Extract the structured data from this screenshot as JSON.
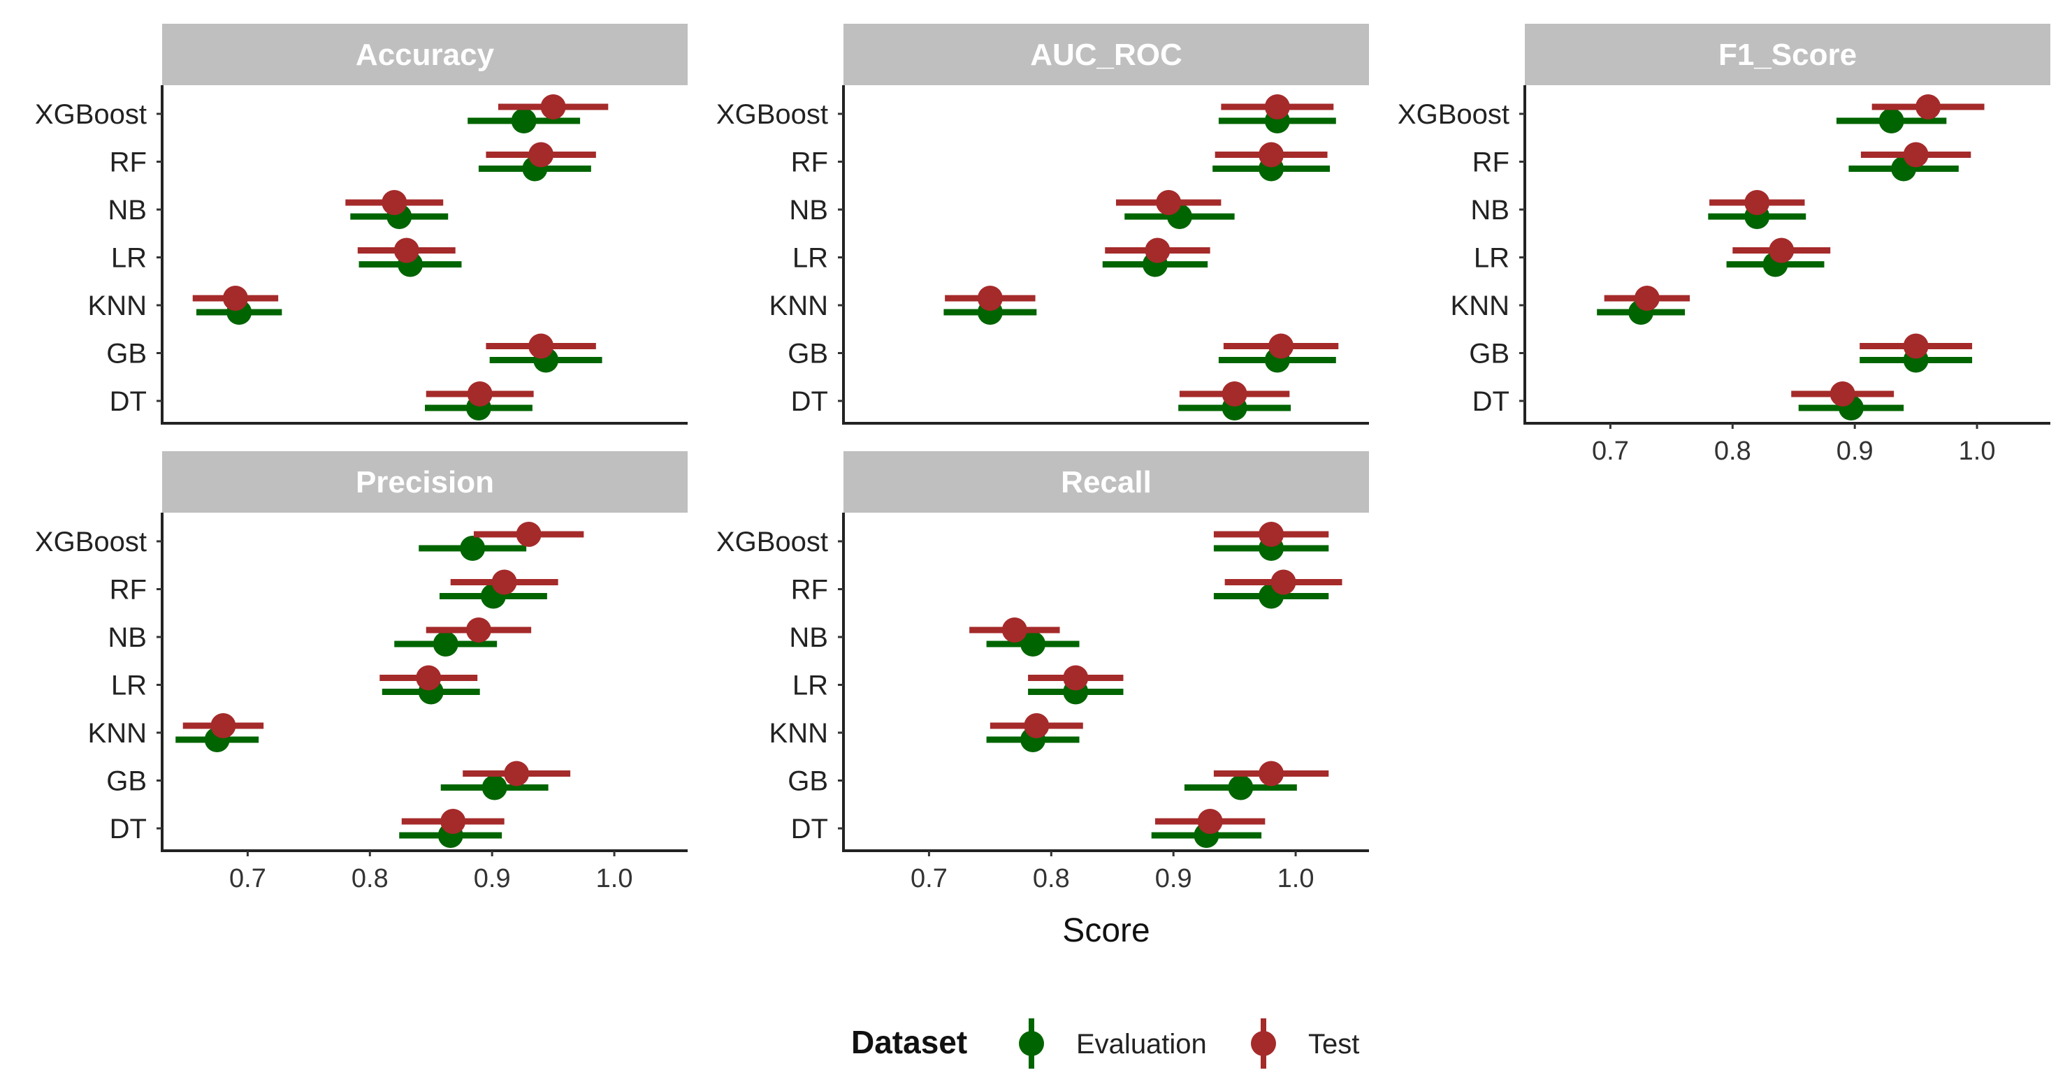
{
  "chart_data": {
    "type": "dot-errorbar-facets",
    "x_label": "Score",
    "x_ticks": [
      0.7,
      0.8,
      0.9,
      1.0
    ],
    "x_tick_labels": [
      "0.7",
      "0.8",
      "0.9",
      "1.0"
    ],
    "xlim": [
      0.63,
      1.06
    ],
    "categories": [
      "XGBoost",
      "RF",
      "NB",
      "LR",
      "KNN",
      "GB",
      "DT"
    ],
    "legend": {
      "title": "Dataset",
      "items": [
        {
          "name": "Evaluation",
          "color": "#006400"
        },
        {
          "name": "Test",
          "color": "#a52a2a"
        }
      ]
    },
    "panels": [
      {
        "title": "Accuracy",
        "series": [
          {
            "name": "Evaluation",
            "values": [
              {
                "model": "XGBoost",
                "mean": 0.926,
                "low": 0.88,
                "high": 0.972
              },
              {
                "model": "RF",
                "mean": 0.935,
                "low": 0.889,
                "high": 0.981
              },
              {
                "model": "NB",
                "mean": 0.824,
                "low": 0.784,
                "high": 0.864
              },
              {
                "model": "LR",
                "mean": 0.833,
                "low": 0.791,
                "high": 0.875
              },
              {
                "model": "KNN",
                "mean": 0.693,
                "low": 0.658,
                "high": 0.728
              },
              {
                "model": "GB",
                "mean": 0.944,
                "low": 0.898,
                "high": 0.99
              },
              {
                "model": "DT",
                "mean": 0.889,
                "low": 0.845,
                "high": 0.933
              }
            ]
          },
          {
            "name": "Test",
            "values": [
              {
                "model": "XGBoost",
                "mean": 0.95,
                "low": 0.905,
                "high": 0.995
              },
              {
                "model": "RF",
                "mean": 0.94,
                "low": 0.895,
                "high": 0.985
              },
              {
                "model": "NB",
                "mean": 0.82,
                "low": 0.78,
                "high": 0.86
              },
              {
                "model": "LR",
                "mean": 0.83,
                "low": 0.79,
                "high": 0.87
              },
              {
                "model": "KNN",
                "mean": 0.69,
                "low": 0.655,
                "high": 0.725
              },
              {
                "model": "GB",
                "mean": 0.94,
                "low": 0.895,
                "high": 0.985
              },
              {
                "model": "DT",
                "mean": 0.89,
                "low": 0.846,
                "high": 0.934
              }
            ]
          }
        ]
      },
      {
        "title": "AUC_ROC",
        "series": [
          {
            "name": "Evaluation",
            "values": [
              {
                "model": "XGBoost",
                "mean": 0.985,
                "low": 0.937,
                "high": 1.033
              },
              {
                "model": "RF",
                "mean": 0.98,
                "low": 0.932,
                "high": 1.028
              },
              {
                "model": "NB",
                "mean": 0.905,
                "low": 0.86,
                "high": 0.95
              },
              {
                "model": "LR",
                "mean": 0.885,
                "low": 0.842,
                "high": 0.928
              },
              {
                "model": "KNN",
                "mean": 0.75,
                "low": 0.712,
                "high": 0.788
              },
              {
                "model": "GB",
                "mean": 0.985,
                "low": 0.937,
                "high": 1.033
              },
              {
                "model": "DT",
                "mean": 0.95,
                "low": 0.904,
                "high": 0.996
              }
            ]
          },
          {
            "name": "Test",
            "values": [
              {
                "model": "XGBoost",
                "mean": 0.985,
                "low": 0.939,
                "high": 1.031
              },
              {
                "model": "RF",
                "mean": 0.98,
                "low": 0.934,
                "high": 1.026
              },
              {
                "model": "NB",
                "mean": 0.896,
                "low": 0.853,
                "high": 0.939
              },
              {
                "model": "LR",
                "mean": 0.887,
                "low": 0.844,
                "high": 0.93
              },
              {
                "model": "KNN",
                "mean": 0.75,
                "low": 0.713,
                "high": 0.787
              },
              {
                "model": "GB",
                "mean": 0.988,
                "low": 0.941,
                "high": 1.035
              },
              {
                "model": "DT",
                "mean": 0.95,
                "low": 0.905,
                "high": 0.995
              }
            ]
          }
        ]
      },
      {
        "title": "F1_Score",
        "series": [
          {
            "name": "Evaluation",
            "values": [
              {
                "model": "XGBoost",
                "mean": 0.93,
                "low": 0.885,
                "high": 0.975
              },
              {
                "model": "RF",
                "mean": 0.94,
                "low": 0.895,
                "high": 0.985
              },
              {
                "model": "NB",
                "mean": 0.82,
                "low": 0.78,
                "high": 0.86
              },
              {
                "model": "LR",
                "mean": 0.835,
                "low": 0.795,
                "high": 0.875
              },
              {
                "model": "KNN",
                "mean": 0.725,
                "low": 0.689,
                "high": 0.761
              },
              {
                "model": "GB",
                "mean": 0.95,
                "low": 0.904,
                "high": 0.996
              },
              {
                "model": "DT",
                "mean": 0.897,
                "low": 0.854,
                "high": 0.94
              }
            ]
          },
          {
            "name": "Test",
            "values": [
              {
                "model": "XGBoost",
                "mean": 0.96,
                "low": 0.914,
                "high": 1.006
              },
              {
                "model": "RF",
                "mean": 0.95,
                "low": 0.905,
                "high": 0.995
              },
              {
                "model": "NB",
                "mean": 0.82,
                "low": 0.781,
                "high": 0.859
              },
              {
                "model": "LR",
                "mean": 0.84,
                "low": 0.8,
                "high": 0.88
              },
              {
                "model": "KNN",
                "mean": 0.73,
                "low": 0.695,
                "high": 0.765
              },
              {
                "model": "GB",
                "mean": 0.95,
                "low": 0.904,
                "high": 0.996
              },
              {
                "model": "DT",
                "mean": 0.89,
                "low": 0.848,
                "high": 0.932
              }
            ]
          }
        ]
      },
      {
        "title": "Precision",
        "series": [
          {
            "name": "Evaluation",
            "values": [
              {
                "model": "XGBoost",
                "mean": 0.884,
                "low": 0.84,
                "high": 0.928
              },
              {
                "model": "RF",
                "mean": 0.901,
                "low": 0.857,
                "high": 0.945
              },
              {
                "model": "NB",
                "mean": 0.862,
                "low": 0.82,
                "high": 0.904
              },
              {
                "model": "LR",
                "mean": 0.85,
                "low": 0.81,
                "high": 0.89
              },
              {
                "model": "KNN",
                "mean": 0.675,
                "low": 0.641,
                "high": 0.709
              },
              {
                "model": "GB",
                "mean": 0.902,
                "low": 0.858,
                "high": 0.946
              },
              {
                "model": "DT",
                "mean": 0.866,
                "low": 0.824,
                "high": 0.908
              }
            ]
          },
          {
            "name": "Test",
            "values": [
              {
                "model": "XGBoost",
                "mean": 0.93,
                "low": 0.885,
                "high": 0.975
              },
              {
                "model": "RF",
                "mean": 0.91,
                "low": 0.866,
                "high": 0.954
              },
              {
                "model": "NB",
                "mean": 0.889,
                "low": 0.846,
                "high": 0.932
              },
              {
                "model": "LR",
                "mean": 0.848,
                "low": 0.808,
                "high": 0.888
              },
              {
                "model": "KNN",
                "mean": 0.68,
                "low": 0.647,
                "high": 0.713
              },
              {
                "model": "GB",
                "mean": 0.92,
                "low": 0.876,
                "high": 0.964
              },
              {
                "model": "DT",
                "mean": 0.868,
                "low": 0.826,
                "high": 0.91
              }
            ]
          }
        ]
      },
      {
        "title": "Recall",
        "series": [
          {
            "name": "Evaluation",
            "values": [
              {
                "model": "XGBoost",
                "mean": 0.98,
                "low": 0.933,
                "high": 1.027
              },
              {
                "model": "RF",
                "mean": 0.98,
                "low": 0.933,
                "high": 1.027
              },
              {
                "model": "NB",
                "mean": 0.785,
                "low": 0.747,
                "high": 0.823
              },
              {
                "model": "LR",
                "mean": 0.82,
                "low": 0.781,
                "high": 0.859
              },
              {
                "model": "KNN",
                "mean": 0.785,
                "low": 0.747,
                "high": 0.823
              },
              {
                "model": "GB",
                "mean": 0.955,
                "low": 0.909,
                "high": 1.001
              },
              {
                "model": "DT",
                "mean": 0.927,
                "low": 0.882,
                "high": 0.972
              }
            ]
          },
          {
            "name": "Test",
            "values": [
              {
                "model": "XGBoost",
                "mean": 0.98,
                "low": 0.933,
                "high": 1.027
              },
              {
                "model": "RF",
                "mean": 0.99,
                "low": 0.942,
                "high": 1.038
              },
              {
                "model": "NB",
                "mean": 0.77,
                "low": 0.733,
                "high": 0.807
              },
              {
                "model": "LR",
                "mean": 0.82,
                "low": 0.781,
                "high": 0.859
              },
              {
                "model": "KNN",
                "mean": 0.788,
                "low": 0.75,
                "high": 0.826
              },
              {
                "model": "GB",
                "mean": 0.98,
                "low": 0.933,
                "high": 1.027
              },
              {
                "model": "DT",
                "mean": 0.93,
                "low": 0.885,
                "high": 0.975
              }
            ]
          }
        ]
      }
    ]
  }
}
